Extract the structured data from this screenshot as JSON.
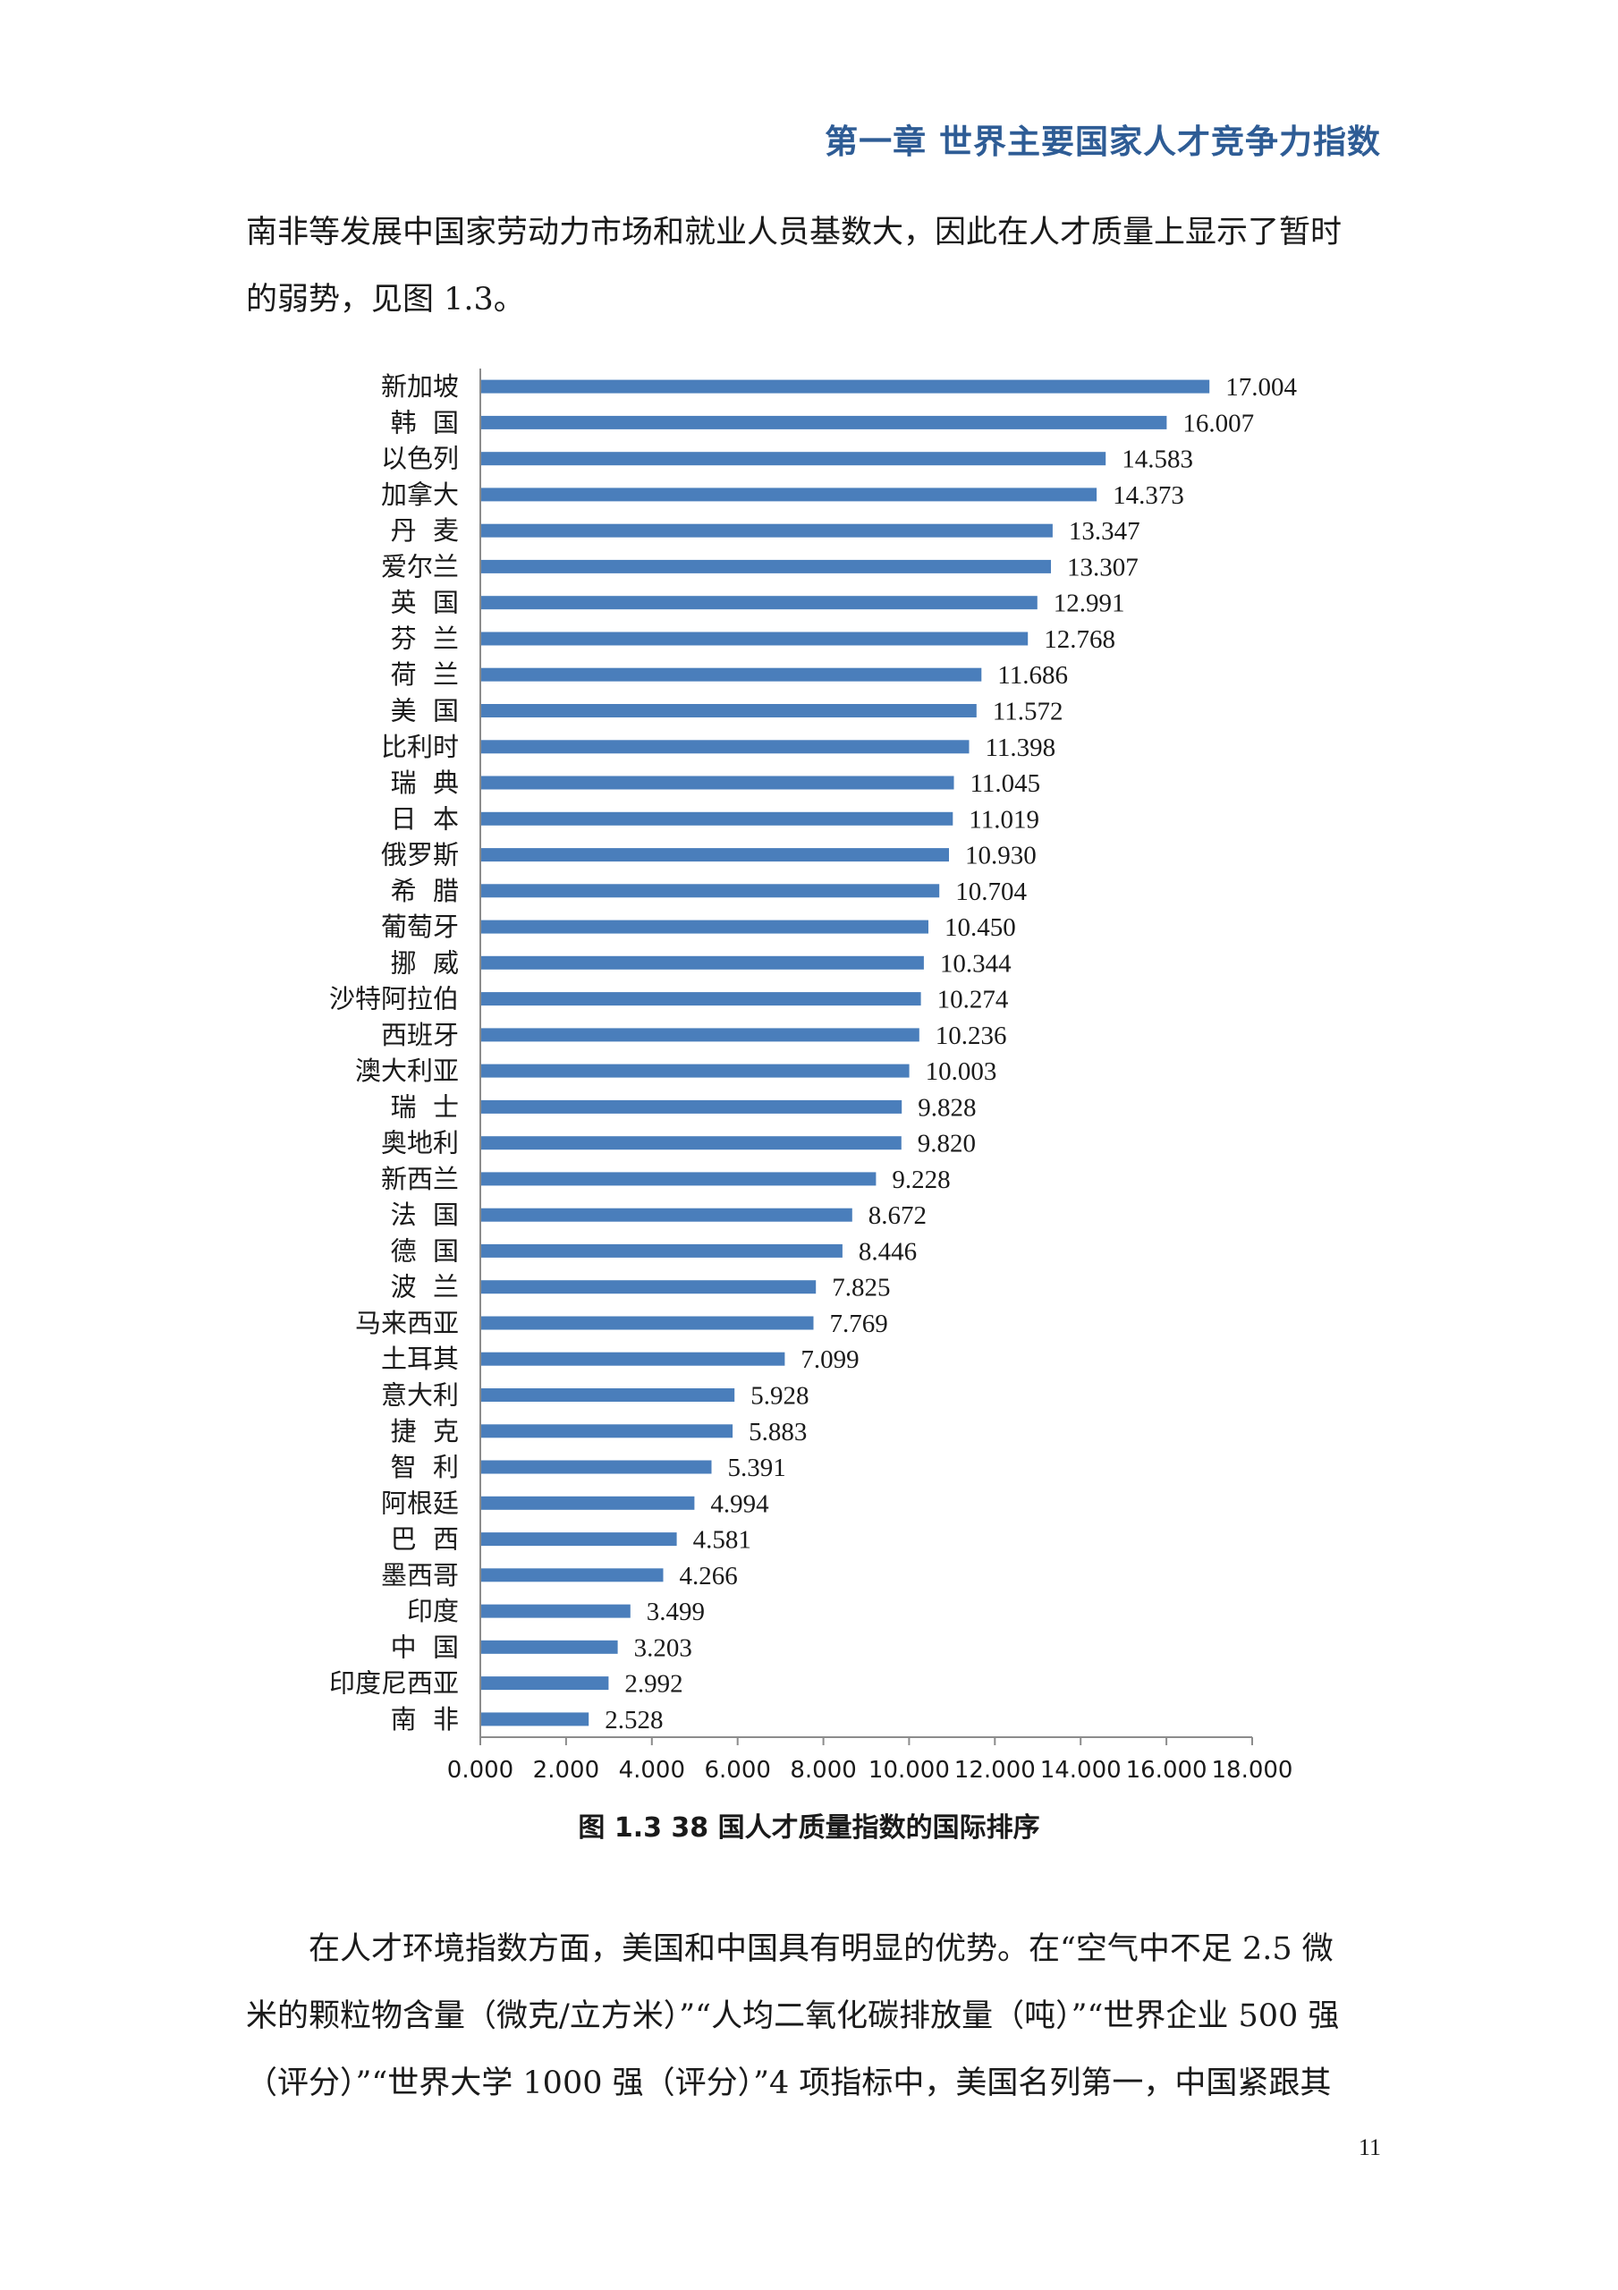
{
  "header": {
    "title": "第一章  世界主要国家人才竞争力指数"
  },
  "intro_text": {
    "line1": "南非等发展中国家劳动力市场和就业人员基数大，因此在人才质量上显示了暂时",
    "line2": "的弱势，见图 1.3。"
  },
  "figure": {
    "caption": "图 1.3    38 国人才质量指数的国际排序"
  },
  "chart_data": {
    "type": "bar",
    "orientation": "horizontal",
    "categories": [
      "新加坡",
      "韩  国",
      "以色列",
      "加拿大",
      "丹  麦",
      "爱尔兰",
      "英  国",
      "芬  兰",
      "荷  兰",
      "美  国",
      "比利时",
      "瑞  典",
      "日  本",
      "俄罗斯",
      "希  腊",
      "葡萄牙",
      "挪  威",
      "沙特阿拉伯",
      "西班牙",
      "澳大利亚",
      "瑞  士",
      "奥地利",
      "新西兰",
      "法  国",
      "德  国",
      "波  兰",
      "马来西亚",
      "土耳其",
      "意大利",
      "捷  克",
      "智  利",
      "阿根廷",
      "巴  西",
      "墨西哥",
      "印度",
      "中  国",
      "印度尼西亚",
      "南  非"
    ],
    "values": [
      17.004,
      16.007,
      14.583,
      14.373,
      13.347,
      13.307,
      12.991,
      12.768,
      11.686,
      11.572,
      11.398,
      11.045,
      11.019,
      10.93,
      10.704,
      10.45,
      10.344,
      10.274,
      10.236,
      10.003,
      9.828,
      9.82,
      9.228,
      8.672,
      8.446,
      7.825,
      7.769,
      7.099,
      5.928,
      5.883,
      5.391,
      4.994,
      4.581,
      4.266,
      3.499,
      3.203,
      2.992,
      2.528
    ],
    "value_labels": [
      "17.004",
      "16.007",
      "14.583",
      "14.373",
      "13.347",
      "13.307",
      "12.991",
      "12.768",
      "11.686",
      "11.572",
      "11.398",
      "11.045",
      "11.019",
      "10.930",
      "10.704",
      "10.450",
      "10.344",
      "10.274",
      "10.236",
      "10.003",
      "9.828",
      "9.820",
      "9.228",
      "8.672",
      "8.446",
      "7.825",
      "7.769",
      "7.099",
      "5.928",
      "5.883",
      "5.391",
      "4.994",
      "4.581",
      "4.266",
      "3.499",
      "3.203",
      "2.992",
      "2.528"
    ],
    "xlim": [
      0,
      18
    ],
    "x_ticks": [
      "0.000",
      "2.000",
      "4.000",
      "6.000",
      "8.000",
      "10.000",
      "12.000",
      "14.000",
      "16.000",
      "18.000"
    ],
    "grid": false,
    "legend": "none",
    "title": "",
    "xlabel": "",
    "ylabel": "",
    "bar_color": "#4a7ebb"
  },
  "outro_text": {
    "line1": "在人才环境指数方面，美国和中国具有明显的优势。在“空气中不足 2.5 微",
    "line2": "米的颗粒物含量（微克/立方米）”“人均二氧化碳排放量（吨）”“世界企业 500 强",
    "line3": "（评分）”“世界大学 1000 强（评分）”4 项指标中，美国名列第一，中国紧跟其"
  },
  "page": {
    "number": "11"
  }
}
